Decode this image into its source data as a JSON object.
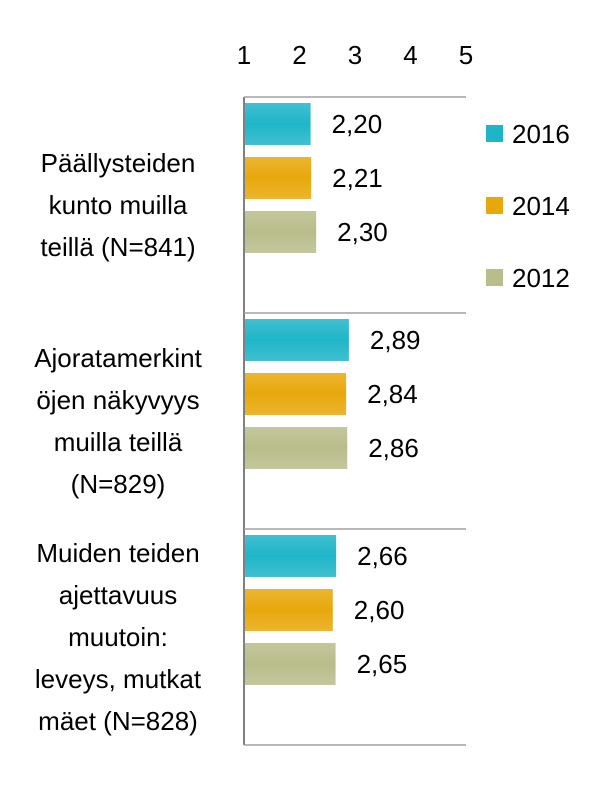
{
  "chart_data": {
    "type": "bar",
    "orientation": "horizontal",
    "title": "",
    "xlabel": "",
    "ylabel": "",
    "xlim": [
      1,
      5
    ],
    "xticks": [
      "1",
      "2",
      "3",
      "4",
      "5"
    ],
    "axis_position": "top",
    "grid": false,
    "legend_position": "right",
    "categories": [
      [
        "Päällysteiden",
        "kunto muilla",
        "teillä (N=841)"
      ],
      [
        "Ajoratamerkint",
        "öjen näkyvyys",
        "muilla teillä",
        "(N=829)"
      ],
      [
        "Muiden teiden",
        "ajettavuus",
        "muutoin:",
        "leveys, mutkat",
        "mäet (N=828)"
      ]
    ],
    "series": [
      {
        "name": "2016",
        "color": "#1fb5c8",
        "values": [
          2.2,
          2.89,
          2.66
        ],
        "labels": [
          "2,20",
          "2,89",
          "2,66"
        ]
      },
      {
        "name": "2014",
        "color": "#e8a80c",
        "values": [
          2.21,
          2.84,
          2.6
        ],
        "labels": [
          "2,21",
          "2,84",
          "2,60"
        ]
      },
      {
        "name": "2012",
        "color": "#b9bd8a",
        "values": [
          2.3,
          2.86,
          2.65
        ],
        "labels": [
          "2,30",
          "2,86",
          "2,65"
        ]
      }
    ]
  }
}
